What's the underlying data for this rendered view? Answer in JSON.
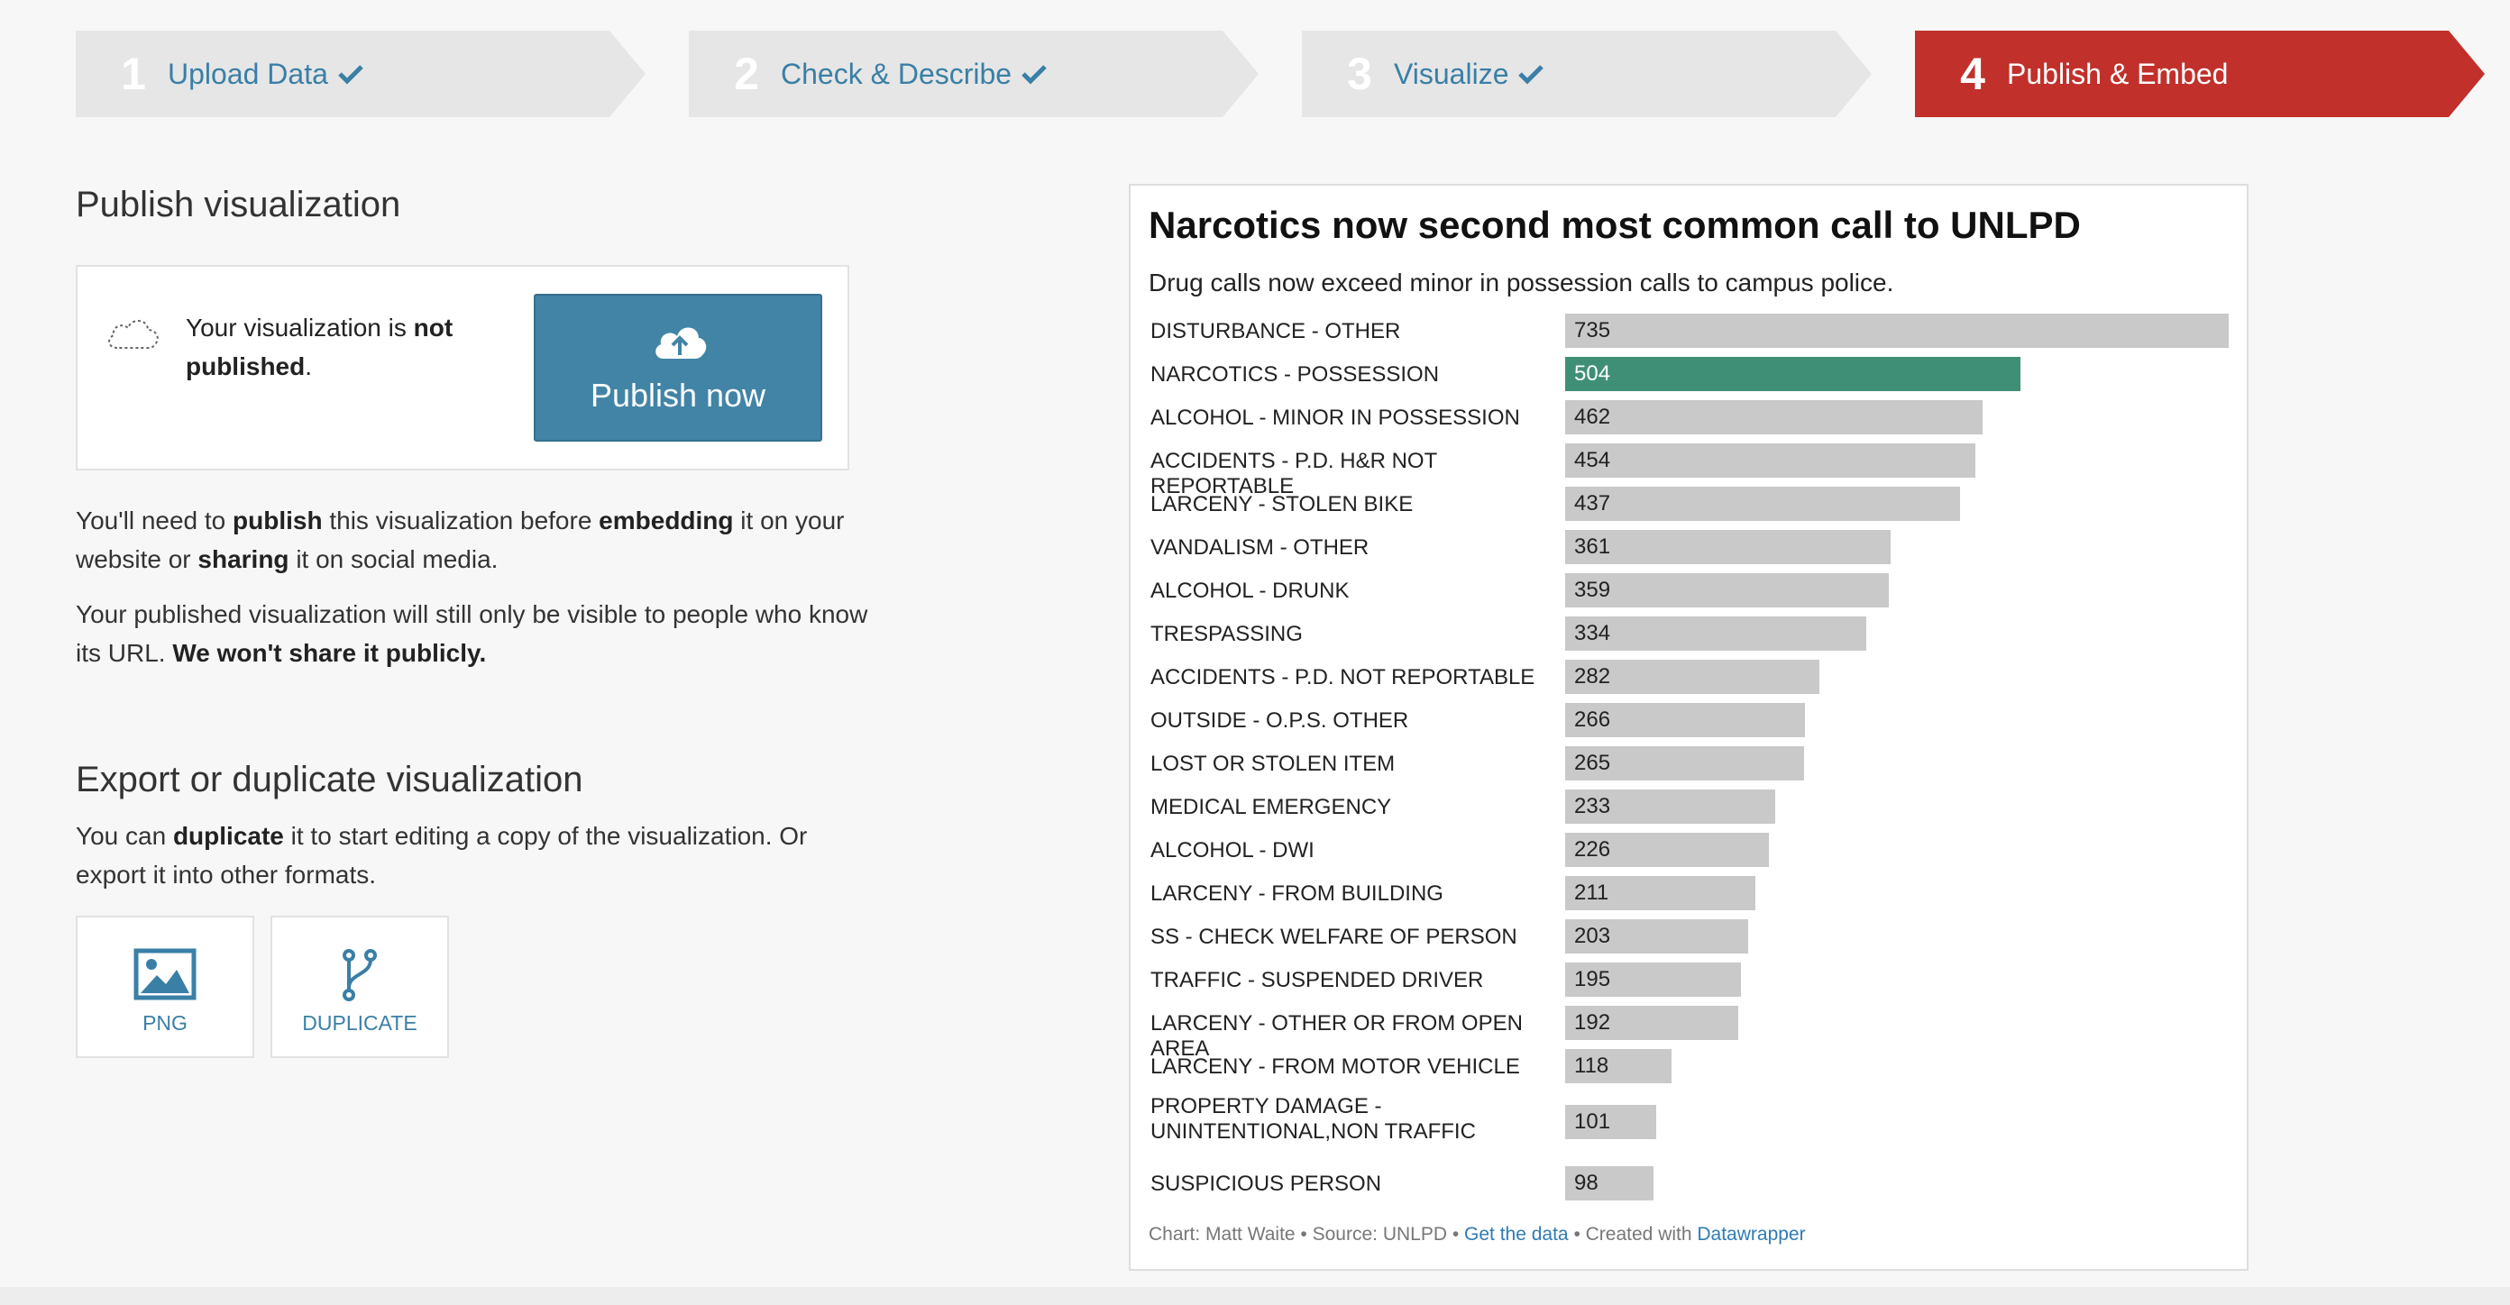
{
  "steps": [
    {
      "num": "1",
      "label": "Upload Data",
      "done": true
    },
    {
      "num": "2",
      "label": "Check & Describe",
      "done": true
    },
    {
      "num": "3",
      "label": "Visualize",
      "done": true
    },
    {
      "num": "4",
      "label": "Publish & Embed",
      "done": false
    }
  ],
  "publish": {
    "heading": "Publish visualization",
    "status_prefix": "Your visualization is ",
    "status_bold": "not published",
    "status_suffix": ".",
    "button_label": "Publish now",
    "para1": {
      "t1": "You'll need to ",
      "b1": "publish",
      "t2": " this visualization before ",
      "b2": "embedding",
      "t3": " it on your website or ",
      "b3": "sharing",
      "t4": " it on social media."
    },
    "para2": {
      "t1": "Your published visualization will still only be visible to people who know its URL. ",
      "b1": "We won't share it publicly."
    }
  },
  "export": {
    "heading": "Export or duplicate visualization",
    "para": {
      "t1": "You can ",
      "b1": "duplicate",
      "t2": " it to start editing a copy of the visualization. Or export it into other formats."
    },
    "png_label": "PNG",
    "duplicate_label": "DUPLICATE"
  },
  "colors": {
    "accent_red": "#c1302b",
    "link_blue": "#3a7fa6",
    "button_blue": "#4184a6",
    "bar_gray": "#c9c9c9",
    "bar_highlight": "#3f8f76"
  },
  "chart_data": {
    "type": "bar",
    "orientation": "horizontal",
    "title": "Narcotics now second most common call to UNLPD",
    "subtitle": "Drug calls now exceed minor in possession calls to campus police.",
    "categories": [
      "DISTURBANCE - OTHER",
      "NARCOTICS - POSSESSION",
      "ALCOHOL - MINOR IN POSSESSION",
      "ACCIDENTS - P.D. H&R NOT REPORTABLE",
      "LARCENY - STOLEN BIKE",
      "VANDALISM - OTHER",
      "ALCOHOL - DRUNK",
      "TRESPASSING",
      "ACCIDENTS - P.D. NOT REPORTABLE",
      "OUTSIDE - O.P.S. OTHER",
      "LOST OR STOLEN ITEM",
      "MEDICAL EMERGENCY",
      "ALCOHOL - DWI",
      "LARCENY - FROM BUILDING",
      "SS - CHECK WELFARE OF PERSON",
      "TRAFFIC - SUSPENDED DRIVER",
      "LARCENY - OTHER OR FROM OPEN AREA",
      "LARCENY - FROM MOTOR VEHICLE",
      "PROPERTY DAMAGE - UNINTENTIONAL,NON TRAFFIC",
      "SUSPICIOUS PERSON"
    ],
    "values": [
      735,
      504,
      462,
      454,
      437,
      361,
      359,
      334,
      282,
      266,
      265,
      233,
      226,
      211,
      203,
      195,
      192,
      118,
      101,
      98
    ],
    "highlight": "NARCOTICS - POSSESSION",
    "xlim": [
      0,
      735
    ],
    "footer": {
      "credit": "Chart: Matt Waite • Source: UNLPD • ",
      "data_link": "Get the data",
      "mid": " • Created with ",
      "tool_link": "Datawrapper"
    }
  }
}
